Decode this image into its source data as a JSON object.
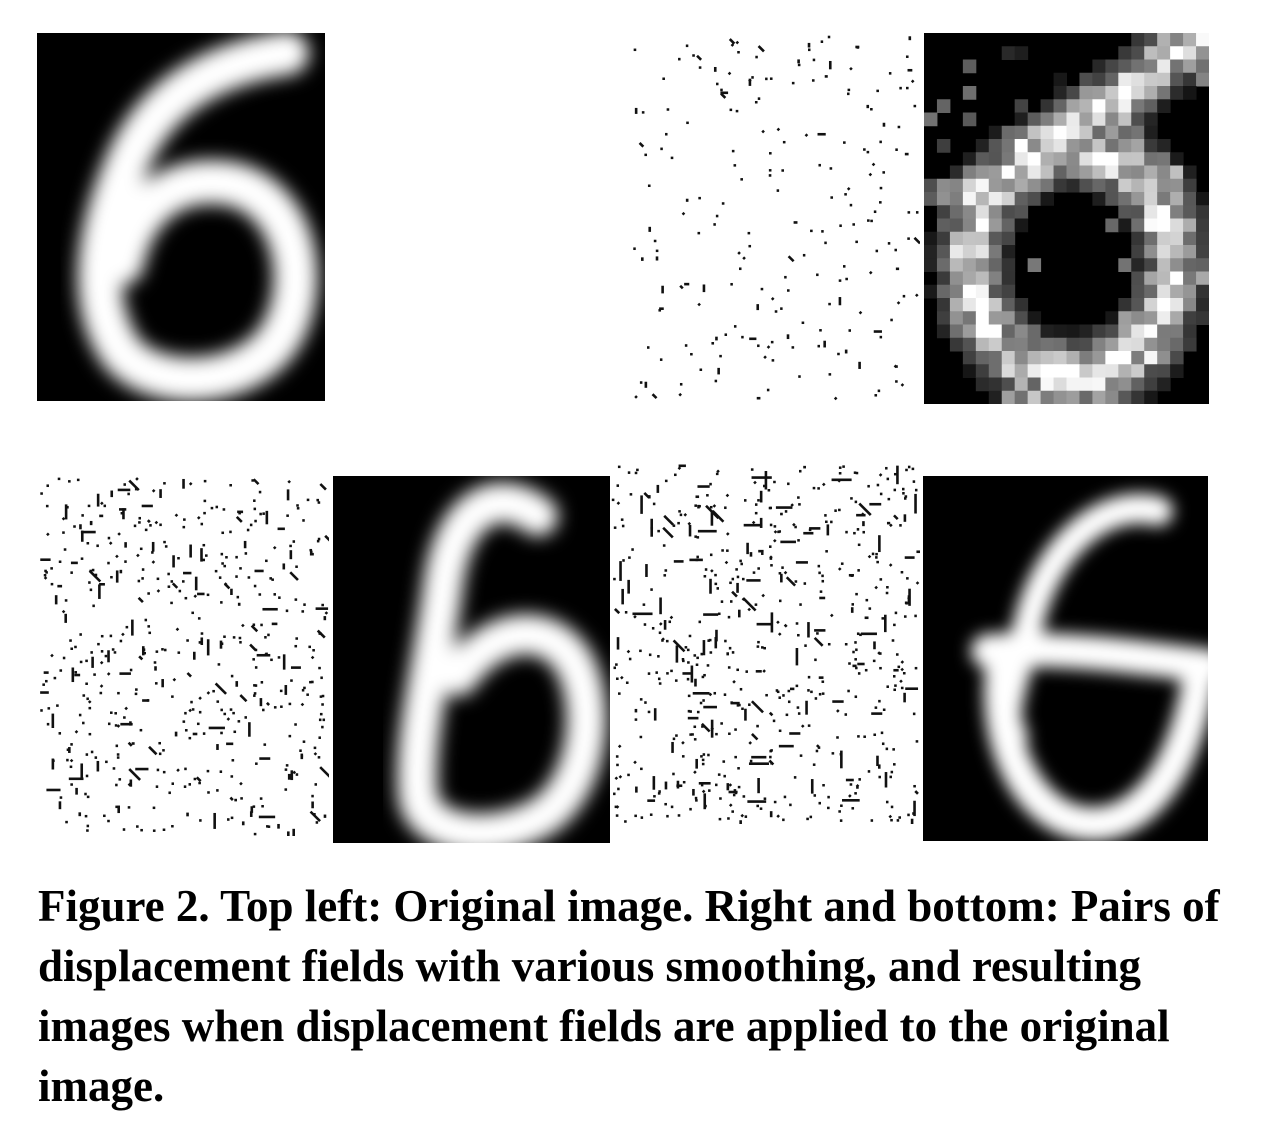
{
  "figure": {
    "caption": "Figure 2. Top left: Original image.  Right and bottom: Pairs of displacement fields with various smoothing, and resulting images when displacement fields are applied to the original image."
  },
  "panels": [
    {
      "role": "original-image",
      "content": "handwritten digit 6, smooth"
    },
    {
      "role": "displacement-field",
      "content": "sparse random vectors"
    },
    {
      "role": "resulting-image",
      "content": "digit 6, heavily noisy distortion"
    },
    {
      "role": "displacement-field",
      "content": "diagonal-oriented smoothed vectors"
    },
    {
      "role": "resulting-image",
      "content": "digit 6, slanted distortion"
    },
    {
      "role": "displacement-field",
      "content": "dense smoothed vectors"
    },
    {
      "role": "resulting-image",
      "content": "digit 6, warped distortion"
    }
  ],
  "colors": {
    "background": "#000000",
    "stroke": "#ffffff",
    "dots": "#111111"
  }
}
